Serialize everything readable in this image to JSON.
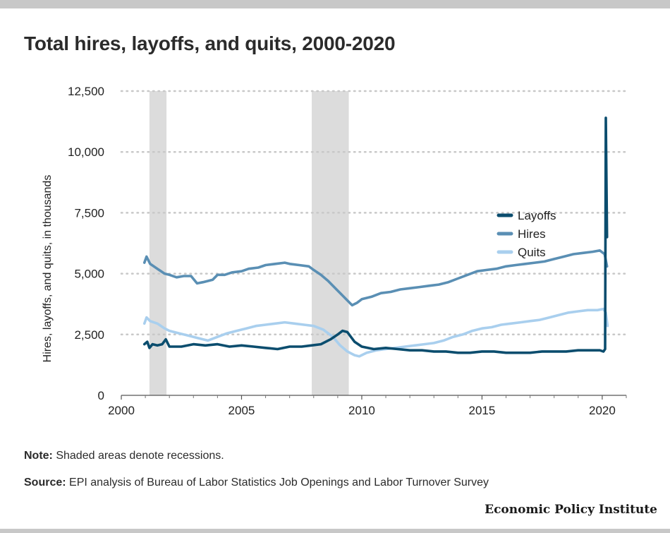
{
  "chart_data": {
    "type": "line",
    "title": "Total hires, layoffs, and quits, 2000-2020",
    "ylabel": "Hires, layoffs, and quits, in thousands",
    "xlabel": "",
    "xlim": [
      2000,
      2021
    ],
    "ylim": [
      0,
      12500
    ],
    "x_ticks": [
      2000,
      2005,
      2010,
      2015,
      2020
    ],
    "x_tick_labels": [
      "2000",
      "2005",
      "2010",
      "2015",
      "2020"
    ],
    "y_ticks": [
      0,
      2500,
      5000,
      7500,
      10000,
      12500
    ],
    "y_tick_labels": [
      "0",
      "2,500",
      "5,000",
      "7,500",
      "10,000",
      "12,500"
    ],
    "grid": "horizontal dotted",
    "legend_position": "right",
    "recessions": [
      [
        2001.17,
        2001.88
      ],
      [
        2007.92,
        2009.46
      ]
    ],
    "series": [
      {
        "name": "Layoffs",
        "color": "#0b4d6e",
        "points": [
          [
            2000.96,
            2100
          ],
          [
            2001.08,
            2200
          ],
          [
            2001.17,
            1950
          ],
          [
            2001.3,
            2100
          ],
          [
            2001.5,
            2050
          ],
          [
            2001.7,
            2100
          ],
          [
            2001.85,
            2300
          ],
          [
            2002.0,
            2000
          ],
          [
            2002.5,
            2000
          ],
          [
            2003.0,
            2100
          ],
          [
            2003.5,
            2050
          ],
          [
            2004.0,
            2100
          ],
          [
            2004.5,
            2000
          ],
          [
            2005.0,
            2050
          ],
          [
            2005.5,
            2000
          ],
          [
            2006.0,
            1950
          ],
          [
            2006.5,
            1900
          ],
          [
            2007.0,
            2000
          ],
          [
            2007.5,
            2000
          ],
          [
            2007.9,
            2050
          ],
          [
            2008.3,
            2100
          ],
          [
            2008.7,
            2300
          ],
          [
            2009.0,
            2500
          ],
          [
            2009.2,
            2650
          ],
          [
            2009.4,
            2600
          ],
          [
            2009.7,
            2200
          ],
          [
            2010.0,
            2000
          ],
          [
            2010.5,
            1900
          ],
          [
            2011.0,
            1950
          ],
          [
            2011.5,
            1900
          ],
          [
            2012.0,
            1850
          ],
          [
            2012.5,
            1850
          ],
          [
            2013.0,
            1800
          ],
          [
            2013.5,
            1800
          ],
          [
            2014.0,
            1750
          ],
          [
            2014.5,
            1750
          ],
          [
            2015.0,
            1800
          ],
          [
            2015.5,
            1800
          ],
          [
            2016.0,
            1750
          ],
          [
            2016.5,
            1750
          ],
          [
            2017.0,
            1750
          ],
          [
            2017.5,
            1800
          ],
          [
            2018.0,
            1800
          ],
          [
            2018.5,
            1800
          ],
          [
            2019.0,
            1850
          ],
          [
            2019.5,
            1850
          ],
          [
            2019.9,
            1850
          ],
          [
            2020.05,
            1800
          ],
          [
            2020.12,
            1900
          ],
          [
            2020.15,
            11400
          ],
          [
            2020.2,
            6500
          ]
        ]
      },
      {
        "name": "Hires",
        "color": "#5a8fb4",
        "points": [
          [
            2000.96,
            5450
          ],
          [
            2001.05,
            5700
          ],
          [
            2001.2,
            5400
          ],
          [
            2001.5,
            5200
          ],
          [
            2001.8,
            5000
          ],
          [
            2002.0,
            4950
          ],
          [
            2002.3,
            4850
          ],
          [
            2002.6,
            4900
          ],
          [
            2002.9,
            4900
          ],
          [
            2003.15,
            4600
          ],
          [
            2003.4,
            4650
          ],
          [
            2003.8,
            4750
          ],
          [
            2004.0,
            4950
          ],
          [
            2004.3,
            4950
          ],
          [
            2004.6,
            5050
          ],
          [
            2005.0,
            5100
          ],
          [
            2005.3,
            5200
          ],
          [
            2005.7,
            5250
          ],
          [
            2006.0,
            5350
          ],
          [
            2006.4,
            5400
          ],
          [
            2006.8,
            5450
          ],
          [
            2007.0,
            5400
          ],
          [
            2007.4,
            5350
          ],
          [
            2007.8,
            5300
          ],
          [
            2008.0,
            5150
          ],
          [
            2008.3,
            4950
          ],
          [
            2008.6,
            4700
          ],
          [
            2008.9,
            4400
          ],
          [
            2009.2,
            4100
          ],
          [
            2009.45,
            3850
          ],
          [
            2009.6,
            3700
          ],
          [
            2009.8,
            3800
          ],
          [
            2010.0,
            3950
          ],
          [
            2010.4,
            4050
          ],
          [
            2010.8,
            4200
          ],
          [
            2011.2,
            4250
          ],
          [
            2011.6,
            4350
          ],
          [
            2012.0,
            4400
          ],
          [
            2012.4,
            4450
          ],
          [
            2012.8,
            4500
          ],
          [
            2013.2,
            4550
          ],
          [
            2013.6,
            4650
          ],
          [
            2014.0,
            4800
          ],
          [
            2014.4,
            4950
          ],
          [
            2014.8,
            5100
          ],
          [
            2015.2,
            5150
          ],
          [
            2015.6,
            5200
          ],
          [
            2016.0,
            5300
          ],
          [
            2016.4,
            5350
          ],
          [
            2016.8,
            5400
          ],
          [
            2017.2,
            5450
          ],
          [
            2017.6,
            5500
          ],
          [
            2018.0,
            5600
          ],
          [
            2018.4,
            5700
          ],
          [
            2018.8,
            5800
          ],
          [
            2019.2,
            5850
          ],
          [
            2019.6,
            5900
          ],
          [
            2019.9,
            5950
          ],
          [
            2020.1,
            5800
          ],
          [
            2020.2,
            5300
          ]
        ]
      },
      {
        "name": "Quits",
        "color": "#a9cfee",
        "points": [
          [
            2000.96,
            2950
          ],
          [
            2001.05,
            3200
          ],
          [
            2001.2,
            3050
          ],
          [
            2001.5,
            2950
          ],
          [
            2001.8,
            2750
          ],
          [
            2002.0,
            2650
          ],
          [
            2002.4,
            2550
          ],
          [
            2002.8,
            2450
          ],
          [
            2003.2,
            2350
          ],
          [
            2003.6,
            2250
          ],
          [
            2004.0,
            2400
          ],
          [
            2004.4,
            2550
          ],
          [
            2004.8,
            2650
          ],
          [
            2005.2,
            2750
          ],
          [
            2005.6,
            2850
          ],
          [
            2006.0,
            2900
          ],
          [
            2006.4,
            2950
          ],
          [
            2006.8,
            3000
          ],
          [
            2007.2,
            2950
          ],
          [
            2007.6,
            2900
          ],
          [
            2008.0,
            2850
          ],
          [
            2008.4,
            2700
          ],
          [
            2008.8,
            2400
          ],
          [
            2009.1,
            2050
          ],
          [
            2009.4,
            1800
          ],
          [
            2009.7,
            1650
          ],
          [
            2009.9,
            1600
          ],
          [
            2010.2,
            1750
          ],
          [
            2010.6,
            1850
          ],
          [
            2011.0,
            1900
          ],
          [
            2011.4,
            1950
          ],
          [
            2011.8,
            2000
          ],
          [
            2012.2,
            2050
          ],
          [
            2012.6,
            2100
          ],
          [
            2013.0,
            2150
          ],
          [
            2013.4,
            2250
          ],
          [
            2013.8,
            2400
          ],
          [
            2014.2,
            2500
          ],
          [
            2014.6,
            2650
          ],
          [
            2015.0,
            2750
          ],
          [
            2015.4,
            2800
          ],
          [
            2015.8,
            2900
          ],
          [
            2016.2,
            2950
          ],
          [
            2016.6,
            3000
          ],
          [
            2017.0,
            3050
          ],
          [
            2017.4,
            3100
          ],
          [
            2017.8,
            3200
          ],
          [
            2018.2,
            3300
          ],
          [
            2018.6,
            3400
          ],
          [
            2019.0,
            3450
          ],
          [
            2019.4,
            3500
          ],
          [
            2019.8,
            3500
          ],
          [
            2020.05,
            3550
          ],
          [
            2020.15,
            3400
          ],
          [
            2020.22,
            2850
          ]
        ]
      }
    ]
  },
  "notes": {
    "note_label": "Note:",
    "note_text": " Shaded areas denote recessions.",
    "source_label": "Source:",
    "source_text": " EPI analysis of Bureau of Labor Statistics Job Openings and Labor Turnover Survey"
  },
  "branding": {
    "logo_text": "Economic Policy Institute"
  }
}
